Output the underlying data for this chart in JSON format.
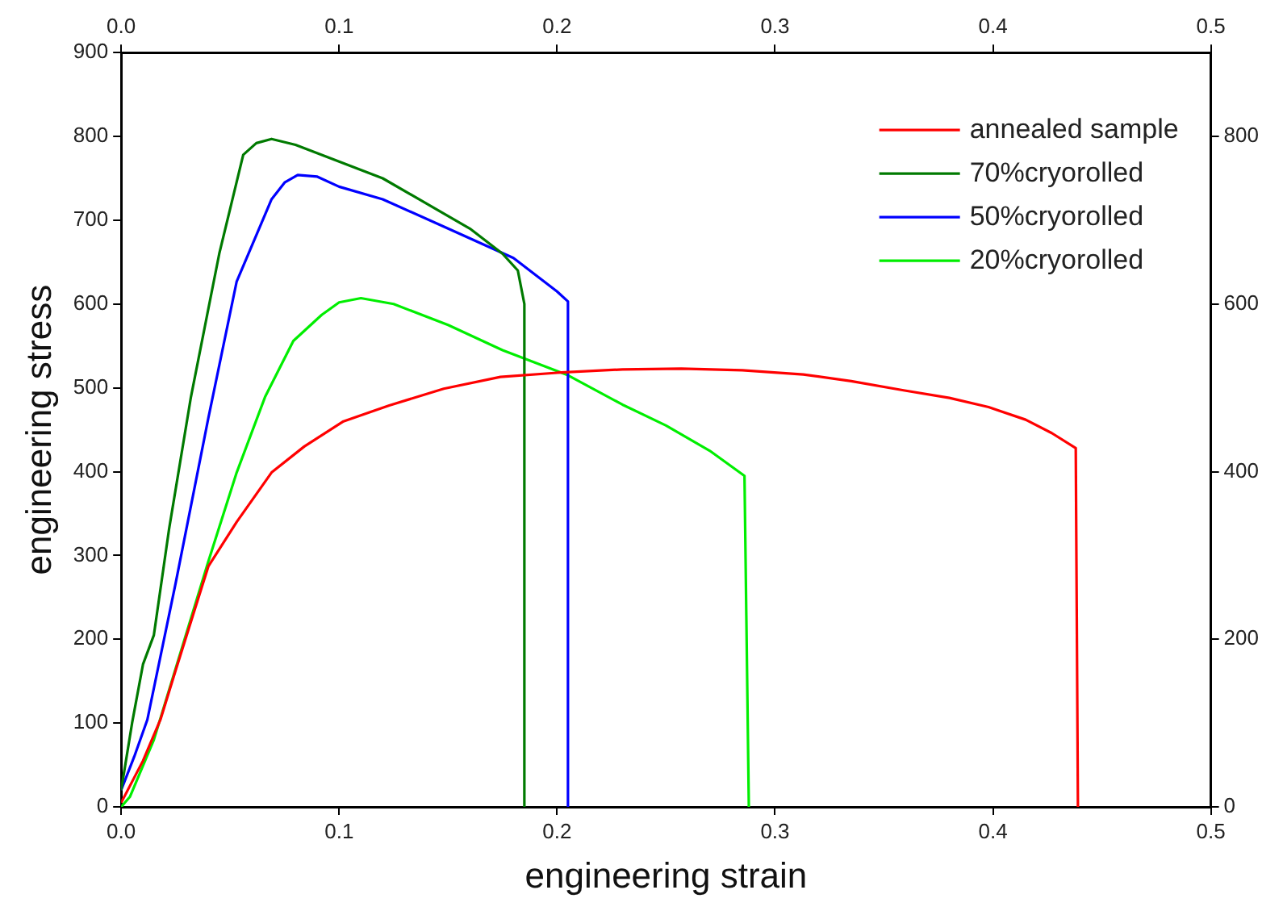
{
  "chart_data": {
    "type": "line",
    "xlabel": "engineering strain",
    "ylabel": "engineering stress",
    "xlim": [
      0,
      0.5
    ],
    "xticks": [
      {
        "value": 0,
        "label": "0.0"
      },
      0.1,
      0.2,
      0.3,
      0.4,
      0.5
    ],
    "x2lim": [
      0,
      0.5
    ],
    "x2ticks": [
      {
        "value": 0,
        "label": "0.0"
      },
      0.1,
      0.2,
      0.3,
      0.4,
      0.5
    ],
    "ylim": [
      0,
      900
    ],
    "yticks": [
      0,
      100,
      200,
      300,
      400,
      500,
      600,
      700,
      800,
      900
    ],
    "y2lim": [
      0,
      900
    ],
    "y2ticks": [
      0,
      200,
      400,
      600,
      800
    ],
    "grid": false,
    "legend": "top right",
    "marker": "none",
    "line_style": "solid",
    "series": [
      {
        "name": "annealed sample",
        "color": "#ff0000",
        "x": [
          0,
          0.01,
          0.018,
          0.025,
          0.04,
          0.053,
          0.069,
          0.084,
          0.102,
          0.123,
          0.148,
          0.174,
          0.2,
          0.23,
          0.257,
          0.285,
          0.313,
          0.335,
          0.359,
          0.38,
          0.398,
          0.415,
          0.427,
          0.438,
          0.439
        ],
        "values": [
          5,
          55,
          104,
          163,
          287,
          340,
          399,
          430,
          460,
          479,
          499,
          513,
          518,
          522,
          523,
          521,
          516,
          508,
          497,
          488,
          477,
          462,
          446,
          428,
          0
        ]
      },
      {
        "name": "70%cryorolled",
        "color": "#007a00",
        "x": [
          0,
          0.005,
          0.01,
          0.015,
          0.022,
          0.032,
          0.045,
          0.056,
          0.062,
          0.069,
          0.08,
          0.1,
          0.12,
          0.14,
          0.16,
          0.175,
          0.182,
          0.185,
          0.185
        ],
        "values": [
          20,
          100,
          170,
          205,
          332,
          489,
          660,
          778,
          792,
          797,
          790,
          770,
          750,
          720,
          690,
          660,
          640,
          600,
          0
        ]
      },
      {
        "name": "50%cryorolled",
        "color": "#0000ff",
        "x": [
          0,
          0.006,
          0.012,
          0.025,
          0.04,
          0.053,
          0.069,
          0.075,
          0.081,
          0.09,
          0.1,
          0.12,
          0.15,
          0.18,
          0.2,
          0.205,
          0.205
        ],
        "values": [
          20,
          60,
          104,
          267,
          464,
          627,
          725,
          745,
          754,
          752,
          740,
          725,
          690,
          655,
          615,
          603,
          0
        ]
      },
      {
        "name": "20%cryorolled",
        "color": "#00ee00",
        "x": [
          0,
          0.004,
          0.015,
          0.04,
          0.053,
          0.066,
          0.079,
          0.092,
          0.1,
          0.11,
          0.125,
          0.15,
          0.175,
          0.205,
          0.23,
          0.25,
          0.27,
          0.286,
          0.288
        ],
        "values": [
          0,
          12,
          80,
          293,
          399,
          489,
          556,
          587,
          602,
          607,
          600,
          575,
          545,
          515,
          480,
          455,
          425,
          395,
          0
        ]
      }
    ]
  }
}
